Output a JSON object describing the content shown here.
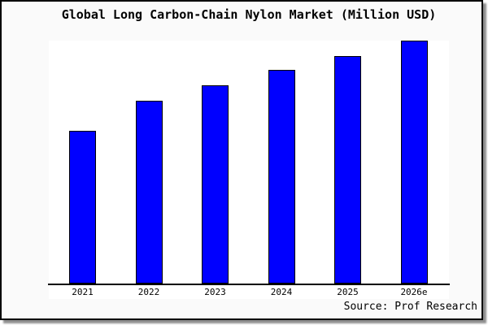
{
  "title": "Global Long Carbon-Chain Nylon Market (Million USD)",
  "source_credit": "Source: Prof Research",
  "colors": {
    "bar_fill": "#0000FF",
    "bar_border": "#000000",
    "axis_line": "#000000",
    "text": "#000000",
    "figure_bg": "#FAFAFA",
    "plot_bg": "#FFFFFF",
    "frame_border": "#000000",
    "frame_shadow": "#8F8F8F"
  },
  "x_axis": {
    "tick_labels": [
      "2021",
      "2022",
      "2023",
      "2024",
      "2025",
      "2026e"
    ]
  },
  "chart_data": {
    "type": "bar",
    "title": "Global Long Carbon-Chain Nylon Market (Million USD)",
    "categories": [
      "2021",
      "2022",
      "2023",
      "2024",
      "2025",
      "2026e"
    ],
    "values": [
      62.8,
      75.2,
      81.5,
      87.9,
      93.8,
      100
    ],
    "xlabel": "",
    "ylabel": "",
    "ylim": [
      0,
      100
    ],
    "grid": false,
    "legend": false,
    "bar_color": "#0000FF",
    "note": "No y-axis scale or data labels are rendered in the figure; values are relative bar heights with the tallest bar (2026e) normalized to 100."
  }
}
